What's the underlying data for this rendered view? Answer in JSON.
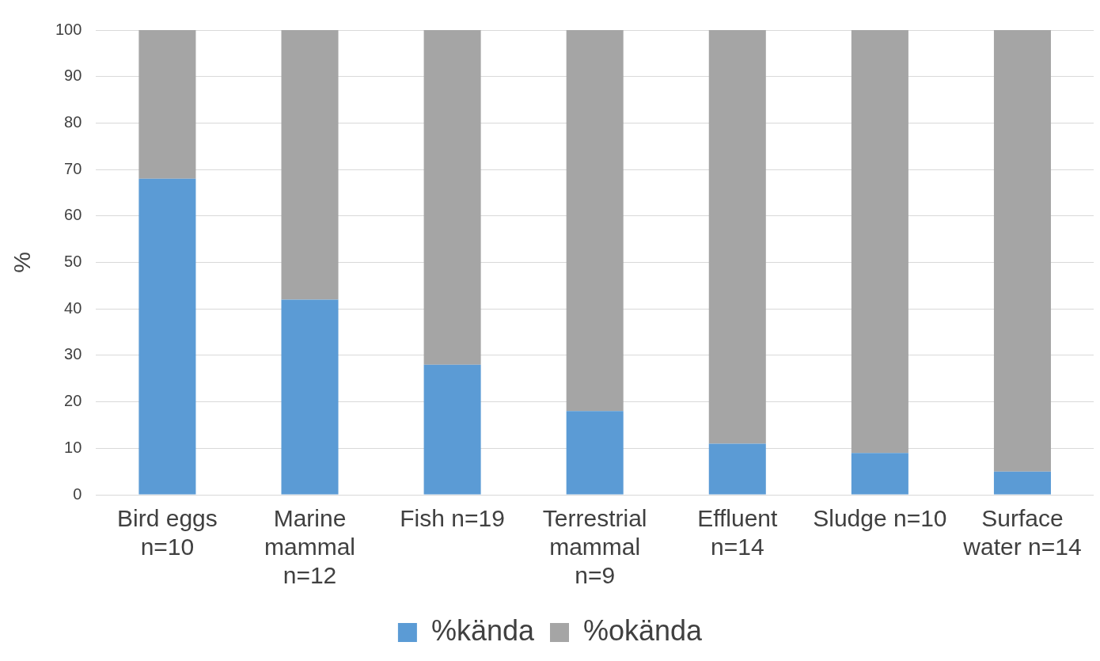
{
  "chart_data": {
    "type": "bar",
    "stacked": true,
    "ylabel": "%",
    "categories": [
      "Bird eggs n=10",
      "Marine mammal n=12",
      "Fish n=19",
      "Terrestrial mammal n=9",
      "Effluent n=14",
      "Sludge n=10",
      "Surface water n=14"
    ],
    "series": [
      {
        "name": "%kända",
        "color": "#5b9bd5",
        "values": [
          68,
          42,
          28,
          18,
          11,
          9,
          5
        ]
      },
      {
        "name": "%okända",
        "color": "#a5a5a5",
        "values": [
          32,
          58,
          72,
          82,
          89,
          91,
          95
        ]
      }
    ],
    "ylim": [
      0,
      100
    ],
    "yticks": [
      0,
      10,
      20,
      30,
      40,
      50,
      60,
      70,
      80,
      90,
      100
    ],
    "grid": "y",
    "legend": "bottom"
  }
}
